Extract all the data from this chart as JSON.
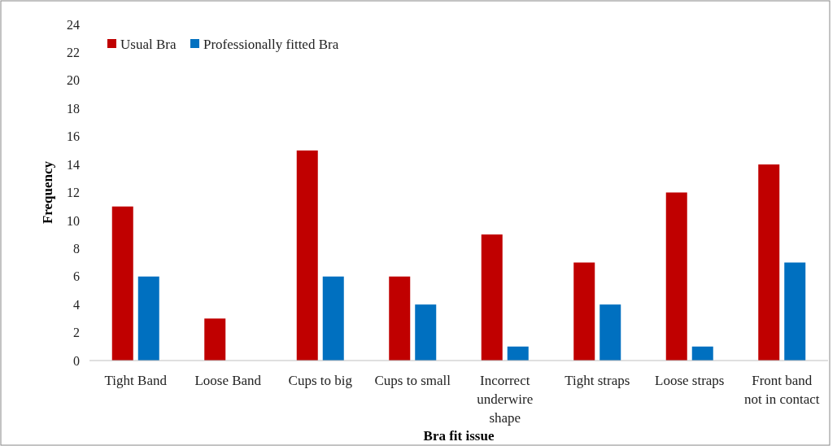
{
  "chart_data": {
    "type": "bar",
    "xlabel": "Bra fit issue",
    "ylabel": "Frequency",
    "categories": [
      "Tight Band",
      "Loose Band",
      "Cups to big",
      "Cups to small",
      "Incorrect underwire shape",
      "Tight straps",
      "Loose straps",
      "Front band not in contact"
    ],
    "series": [
      {
        "name": "Usual Bra",
        "color": "#c00000",
        "values": [
          11,
          3,
          15,
          6,
          9,
          7,
          12,
          14
        ]
      },
      {
        "name": "Professionally fitted Bra",
        "color": "#0070c0",
        "values": [
          6,
          0,
          6,
          4,
          1,
          4,
          1,
          7
        ]
      }
    ],
    "ylim": [
      0,
      24
    ],
    "yticks": [
      0,
      2,
      4,
      6,
      8,
      10,
      12,
      14,
      16,
      18,
      20,
      22,
      24
    ],
    "grid": false,
    "legend": "top left"
  }
}
